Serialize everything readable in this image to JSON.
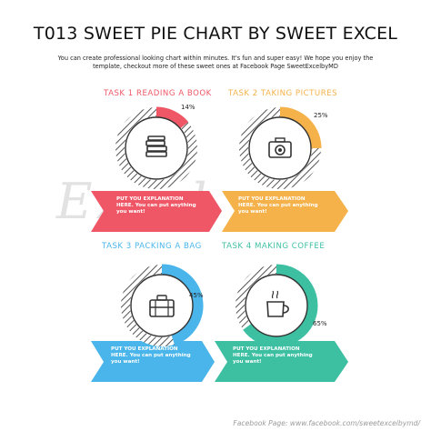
{
  "title": "T013 SWEET PIE CHART BY SWEET EXCEL",
  "intro": "You can create professional looking chart within minutes. It's fun and super easy! We hope you enjoy the template, checkout more of these sweet ones at Facebook Page SweetExcelbyMD",
  "watermark": "Excel",
  "footer": "Facebook Page: www.facebook.com/sweetexcelbymd/",
  "colors": {
    "red": "#ef5766",
    "orange": "#f5b24a",
    "blue": "#49b5ea",
    "green": "#3dbfa2",
    "hatch": "#555555"
  },
  "icons": [
    "books-icon",
    "camera-icon",
    "briefcase-icon",
    "coffee-mug-icon"
  ],
  "chart_data": {
    "type": "pie",
    "categories": [
      "TASK 1 READING A BOOK",
      "TASK 2 TAKING PICTURES",
      "TASK 3 PACKING A BAG",
      "TASK 4 MAKING COFFEE"
    ],
    "values": [
      14,
      25,
      45,
      65
    ],
    "labels": [
      "14%",
      "25%",
      "45%",
      "65%"
    ],
    "unit": "%"
  },
  "explanations": [
    "PUT YOU EXPLANATION HERE. You can put anything you want!",
    "PUT YOU EXPLANATION HERE. You can put anything you want!",
    "PUT YOU EXPLANATION HERE. You can put anything you want!",
    "PUT YOU EXPLANATION HERE. You can put anything you want!"
  ]
}
